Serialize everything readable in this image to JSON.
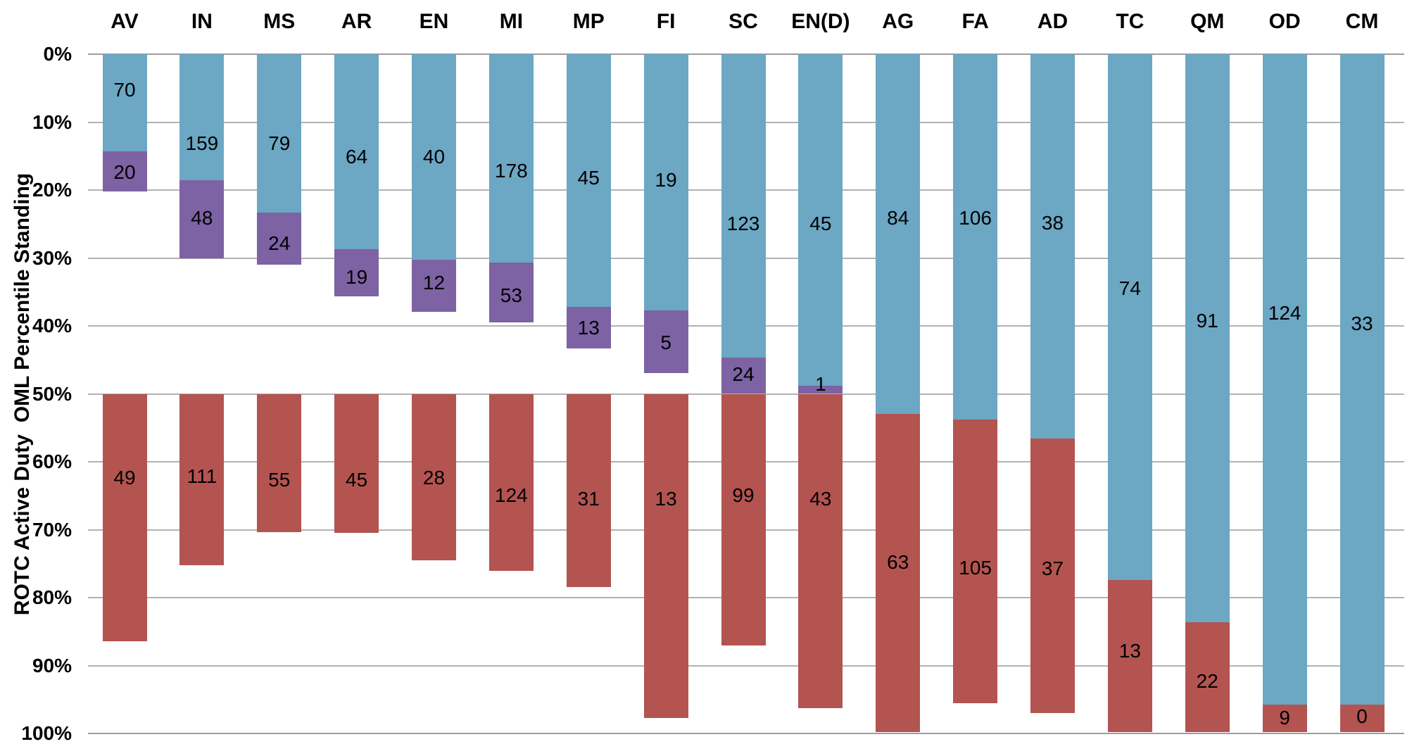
{
  "chart_data": {
    "type": "stacked-column",
    "title": "",
    "ylabel": "ROTC Active Duty  OML Percentile Standing",
    "xlabel": "",
    "y_axis": {
      "min": 0,
      "max": 100,
      "tick_step": 10,
      "inverted": true,
      "tick_labels": [
        "0%",
        "10%",
        "20%",
        "30%",
        "40%",
        "50%",
        "60%",
        "70%",
        "80%",
        "90%",
        "100%"
      ],
      "grid": true
    },
    "legend": "none",
    "series_names": [
      "blue",
      "purple",
      "red"
    ],
    "series_colors": {
      "blue": "#6CA7C4",
      "purple": "#7D62A4",
      "red": "#B35450"
    },
    "gridline_color": "#b2b2b2",
    "categories": [
      "AV",
      "IN",
      "MS",
      "AR",
      "EN",
      "MI",
      "MP",
      "FI",
      "SC",
      "EN(D)",
      "AG",
      "FA",
      "AD",
      "TC",
      "QM",
      "OD",
      "CM"
    ],
    "columns": [
      {
        "category": "AV",
        "segments": [
          {
            "series": "blue",
            "from": 0,
            "to": 14.3,
            "value": 70,
            "label_at": 5.3
          },
          {
            "series": "purple",
            "from": 14.3,
            "to": 20.2,
            "value": 20,
            "label_at": 17.4
          },
          {
            "series": "red",
            "from": 50,
            "to": 86.4,
            "value": 49,
            "label_at": 62.4
          }
        ]
      },
      {
        "category": "IN",
        "segments": [
          {
            "series": "blue",
            "from": 0,
            "to": 18.6,
            "value": 159,
            "label_at": 13.2
          },
          {
            "series": "purple",
            "from": 18.6,
            "to": 30.1,
            "value": 48,
            "label_at": 24.1
          },
          {
            "series": "red",
            "from": 50,
            "to": 75.2,
            "value": 111,
            "label_at": 62.2
          }
        ]
      },
      {
        "category": "MS",
        "segments": [
          {
            "series": "blue",
            "from": 0,
            "to": 23.3,
            "value": 79,
            "label_at": 13.2
          },
          {
            "series": "purple",
            "from": 23.3,
            "to": 31.0,
            "value": 24,
            "label_at": 27.9
          },
          {
            "series": "red",
            "from": 50,
            "to": 70.4,
            "value": 55,
            "label_at": 62.7
          }
        ]
      },
      {
        "category": "AR",
        "segments": [
          {
            "series": "blue",
            "from": 0,
            "to": 28.7,
            "value": 64,
            "label_at": 15.1
          },
          {
            "series": "purple",
            "from": 28.7,
            "to": 35.6,
            "value": 19,
            "label_at": 32.9
          },
          {
            "series": "red",
            "from": 50,
            "to": 70.5,
            "value": 45,
            "label_at": 62.7
          }
        ]
      },
      {
        "category": "EN",
        "segments": [
          {
            "series": "blue",
            "from": 0,
            "to": 30.3,
            "value": 40,
            "label_at": 15.1
          },
          {
            "series": "purple",
            "from": 30.3,
            "to": 37.9,
            "value": 12,
            "label_at": 33.7
          },
          {
            "series": "red",
            "from": 50,
            "to": 74.5,
            "value": 28,
            "label_at": 62.4
          }
        ]
      },
      {
        "category": "MI",
        "segments": [
          {
            "series": "blue",
            "from": 0,
            "to": 30.7,
            "value": 178,
            "label_at": 17.2
          },
          {
            "series": "purple",
            "from": 30.7,
            "to": 39.5,
            "value": 53,
            "label_at": 35.5
          },
          {
            "series": "red",
            "from": 50,
            "to": 76.1,
            "value": 124,
            "label_at": 65.0
          }
        ]
      },
      {
        "category": "MP",
        "segments": [
          {
            "series": "blue",
            "from": 0,
            "to": 37.2,
            "value": 45,
            "label_at": 18.2
          },
          {
            "series": "purple",
            "from": 37.2,
            "to": 43.3,
            "value": 13,
            "label_at": 40.3
          },
          {
            "series": "red",
            "from": 50,
            "to": 78.4,
            "value": 31,
            "label_at": 65.5
          }
        ]
      },
      {
        "category": "FI",
        "segments": [
          {
            "series": "blue",
            "from": 0,
            "to": 37.7,
            "value": 19,
            "label_at": 18.6
          },
          {
            "series": "purple",
            "from": 37.7,
            "to": 46.9,
            "value": 5,
            "label_at": 42.5
          },
          {
            "series": "red",
            "from": 50,
            "to": 97.7,
            "value": 13,
            "label_at": 65.5
          }
        ]
      },
      {
        "category": "SC",
        "segments": [
          {
            "series": "blue",
            "from": 0,
            "to": 44.7,
            "value": 123,
            "label_at": 25.0
          },
          {
            "series": "purple",
            "from": 44.7,
            "to": 50.0,
            "value": 24,
            "label_at": 47.2
          },
          {
            "series": "red",
            "from": 50,
            "to": 87.0,
            "value": 99,
            "label_at": 65.0
          }
        ]
      },
      {
        "category": "EN(D)",
        "segments": [
          {
            "series": "blue",
            "from": 0,
            "to": 48.8,
            "value": 45,
            "label_at": 25.0
          },
          {
            "series": "purple",
            "from": 48.8,
            "to": 50.0,
            "value": 1,
            "label_at": 48.6
          },
          {
            "series": "red",
            "from": 50,
            "to": 96.3,
            "value": 43,
            "label_at": 65.5
          }
        ]
      },
      {
        "category": "AG",
        "segments": [
          {
            "series": "blue",
            "from": 0,
            "to": 53.0,
            "value": 84,
            "label_at": 24.1
          },
          {
            "series": "red",
            "from": 53.0,
            "to": 99.8,
            "value": 63,
            "label_at": 74.8
          }
        ]
      },
      {
        "category": "FA",
        "segments": [
          {
            "series": "blue",
            "from": 0,
            "to": 53.8,
            "value": 106,
            "label_at": 24.1
          },
          {
            "series": "red",
            "from": 53.8,
            "to": 95.5,
            "value": 105,
            "label_at": 75.6
          }
        ]
      },
      {
        "category": "AD",
        "segments": [
          {
            "series": "blue",
            "from": 0,
            "to": 56.6,
            "value": 38,
            "label_at": 24.9
          },
          {
            "series": "red",
            "from": 56.6,
            "to": 97.0,
            "value": 37,
            "label_at": 75.8
          }
        ]
      },
      {
        "category": "TC",
        "segments": [
          {
            "series": "blue",
            "from": 0,
            "to": 77.4,
            "value": 74,
            "label_at": 34.5
          },
          {
            "series": "red",
            "from": 77.4,
            "to": 99.8,
            "value": 13,
            "label_at": 87.9
          }
        ]
      },
      {
        "category": "QM",
        "segments": [
          {
            "series": "blue",
            "from": 0,
            "to": 83.6,
            "value": 91,
            "label_at": 39.3
          },
          {
            "series": "red",
            "from": 83.6,
            "to": 99.8,
            "value": 22,
            "label_at": 92.3
          }
        ]
      },
      {
        "category": "OD",
        "segments": [
          {
            "series": "blue",
            "from": 0,
            "to": 95.8,
            "value": 124,
            "label_at": 38.1
          },
          {
            "series": "red",
            "from": 95.8,
            "to": 99.8,
            "value": 9,
            "label_at": 97.7
          }
        ]
      },
      {
        "category": "CM",
        "segments": [
          {
            "series": "blue",
            "from": 0,
            "to": 95.8,
            "value": 33,
            "label_at": 39.7
          },
          {
            "series": "red",
            "from": 95.8,
            "to": 99.8,
            "value": 0,
            "label_at": 97.5
          }
        ]
      }
    ]
  }
}
